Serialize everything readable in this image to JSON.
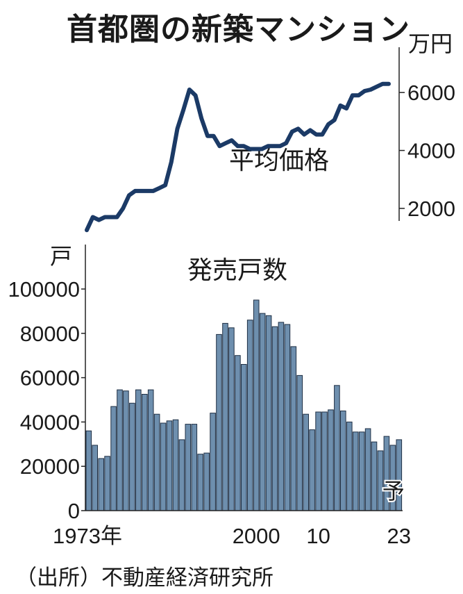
{
  "figure": {
    "title": "首都圏の新築マンション",
    "source": "（出所）不動産経済研究所"
  },
  "chart_data": [
    {
      "type": "line",
      "title": "平均価格",
      "unit": "万円",
      "y_ticks": [
        2000,
        4000,
        6000
      ],
      "ylim": [
        800,
        6800
      ],
      "x": [
        1973,
        1974,
        1975,
        1976,
        1977,
        1978,
        1979,
        1980,
        1981,
        1982,
        1983,
        1984,
        1985,
        1986,
        1987,
        1988,
        1989,
        1990,
        1991,
        1992,
        1993,
        1994,
        1995,
        1996,
        1997,
        1998,
        1999,
        2000,
        2001,
        2002,
        2003,
        2004,
        2005,
        2006,
        2007,
        2008,
        2009,
        2010,
        2011,
        2012,
        2013,
        2014,
        2015,
        2016,
        2017,
        2018,
        2019,
        2020,
        2021,
        2022,
        2023
      ],
      "values": [
        1250,
        1700,
        1600,
        1700,
        1700,
        1700,
        2000,
        2450,
        2600,
        2600,
        2600,
        2600,
        2700,
        2800,
        3600,
        4750,
        5400,
        6100,
        5900,
        5100,
        4500,
        4500,
        4150,
        4250,
        4350,
        4150,
        4150,
        4050,
        4050,
        4050,
        4150,
        4150,
        4150,
        4250,
        4650,
        4750,
        4550,
        4700,
        4550,
        4550,
        4900,
        5050,
        5550,
        5450,
        5900,
        5900,
        6050,
        6100,
        6200,
        6300,
        6300
      ],
      "color": "#1b3a66",
      "axis_side": "right"
    },
    {
      "type": "bar",
      "title": "発売戸数",
      "unit": "戸",
      "y_ticks": [
        0,
        20000,
        40000,
        60000,
        80000,
        100000
      ],
      "ylim": [
        0,
        100000
      ],
      "x_tick_labels": [
        {
          "year": 1973,
          "label": "1973年"
        },
        {
          "year": 2000,
          "label": "2000"
        },
        {
          "year": 2010,
          "label": "10"
        },
        {
          "year": 2023,
          "label": "23"
        }
      ],
      "x": [
        1973,
        1974,
        1975,
        1976,
        1977,
        1978,
        1979,
        1980,
        1981,
        1982,
        1983,
        1984,
        1985,
        1986,
        1987,
        1988,
        1989,
        1990,
        1991,
        1992,
        1993,
        1994,
        1995,
        1996,
        1997,
        1998,
        1999,
        2000,
        2001,
        2002,
        2003,
        2004,
        2005,
        2006,
        2007,
        2008,
        2009,
        2010,
        2011,
        2012,
        2013,
        2014,
        2015,
        2016,
        2017,
        2018,
        2019,
        2020,
        2021,
        2022,
        2023
      ],
      "values": [
        36000,
        29500,
        23500,
        24500,
        47000,
        54500,
        54000,
        48500,
        54500,
        52500,
        54500,
        43500,
        39500,
        40500,
        41000,
        32000,
        39000,
        39000,
        25500,
        26000,
        44000,
        79500,
        84500,
        82500,
        70000,
        66000,
        86000,
        95000,
        89000,
        88000,
        83000,
        85000,
        84000,
        74000,
        61000,
        43500,
        36500,
        44500,
        44500,
        45500,
        56500,
        45000,
        40000,
        35500,
        35500,
        37000,
        31000,
        27000,
        33500,
        29500,
        32000
      ],
      "color": "#6e8fae",
      "forecast_label": "予"
    }
  ]
}
